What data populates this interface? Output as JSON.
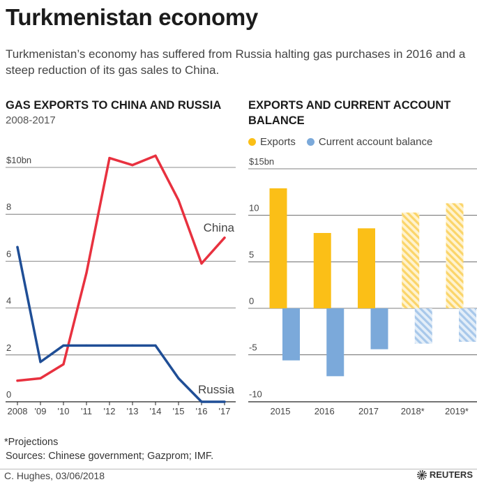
{
  "header": {
    "title": "Turkmenistan economy",
    "subtitle": "Turkmenistan’s economy has suffered from Russia halting gas purchases in 2016 and a steep reduction of its gas sales to China."
  },
  "colors": {
    "china": "#e8313f",
    "russia": "#1f4e96",
    "exports": "#fbbf17",
    "current_account": "#7ba9da",
    "grid": "#333333"
  },
  "chart_data": [
    {
      "type": "line",
      "title": "GAS EXPORTS TO CHINA AND RUSSIA",
      "subtitle": "2008-2017",
      "x": [
        "2008",
        "'09",
        "'10",
        "'11",
        "'12",
        "'13",
        "'14",
        "'15",
        "'16",
        "'17"
      ],
      "ylim": [
        0,
        10
      ],
      "yticks": [
        "0",
        "2",
        "4",
        "6",
        "8",
        "$10bn"
      ],
      "series": [
        {
          "name": "China",
          "values": [
            0.9,
            1.0,
            1.6,
            5.5,
            10.4,
            10.1,
            10.5,
            8.6,
            5.9,
            7.0
          ]
        },
        {
          "name": "Russia",
          "values": [
            6.6,
            1.7,
            2.4,
            2.4,
            2.4,
            2.4,
            2.4,
            1.0,
            0.0,
            0.0
          ]
        }
      ],
      "grid": true
    },
    {
      "type": "bar",
      "title": "EXPORTS AND CURRENT ACCOUNT BALANCE",
      "categories": [
        "2015",
        "2016",
        "2017",
        "2018*",
        "2019*"
      ],
      "ylim": [
        -10,
        15
      ],
      "yticks": [
        "-10",
        "-5",
        "0",
        "5",
        "10",
        "$15bn"
      ],
      "series": [
        {
          "name": "Exports",
          "values": [
            12.9,
            8.1,
            8.6,
            10.3,
            11.3
          ]
        },
        {
          "name": "Current account balance",
          "values": [
            -5.6,
            -7.3,
            -4.4,
            -3.8,
            -3.6
          ]
        }
      ],
      "projected": [
        false,
        false,
        false,
        true,
        true
      ],
      "legend": "top-left",
      "grid": true
    }
  ],
  "footer": {
    "projections_note": "*Projections",
    "sources": "Sources: Chinese government; Gazprom; IMF.",
    "credit": "C. Hughes, 03/06/2018",
    "brand": "REUTERS"
  }
}
